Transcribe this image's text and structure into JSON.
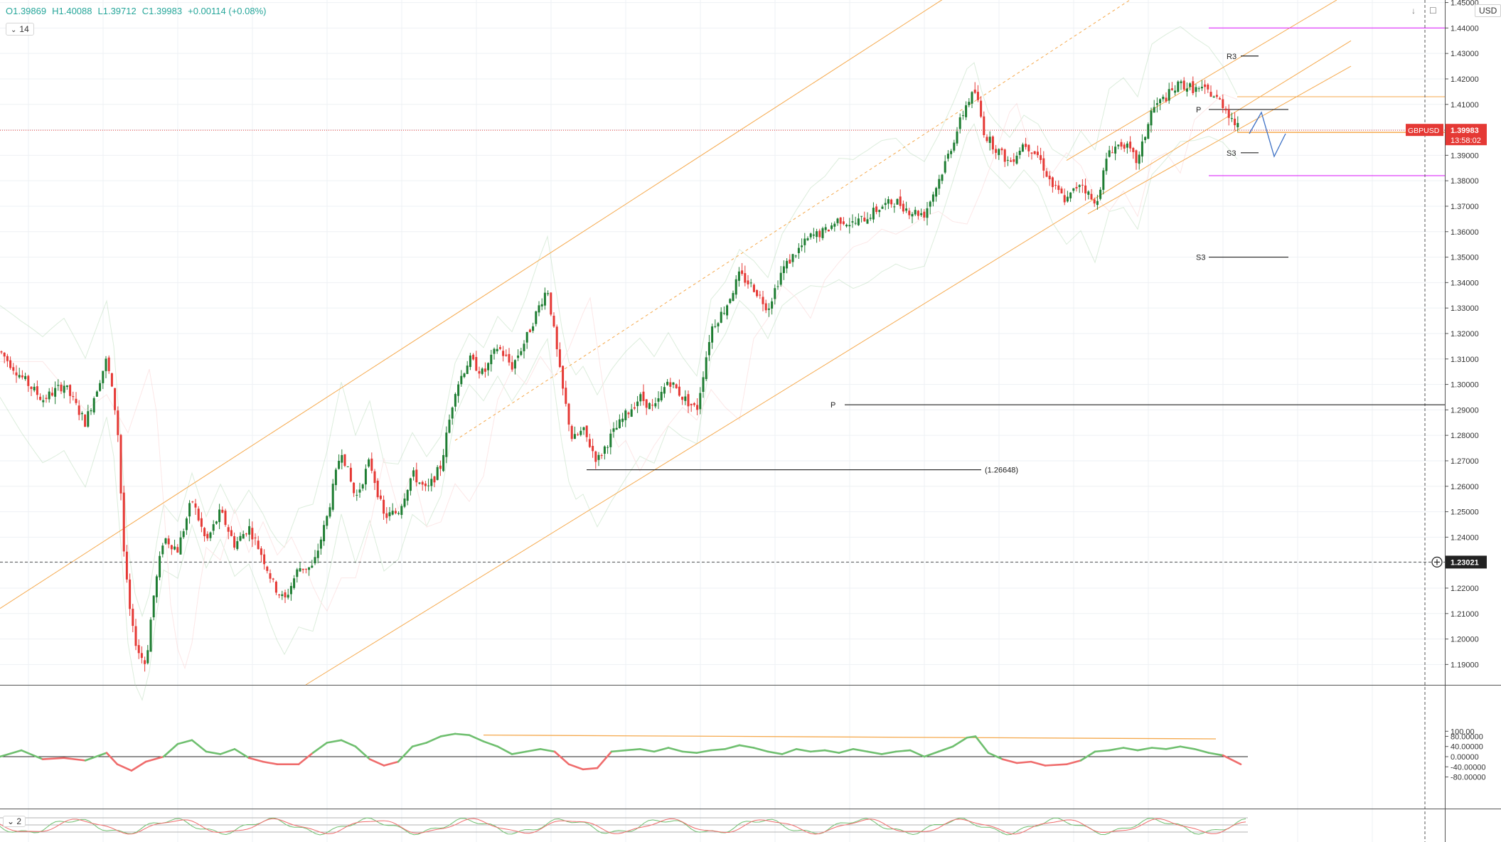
{
  "legend": {
    "open": "O1.39869",
    "high": "H1.40088",
    "low": "L1.39712",
    "close": "C1.39983",
    "change": "+0.00114 (+0.08%)"
  },
  "interval_badge": "14",
  "currency": "USD",
  "symbol_label": "GBPUSD",
  "price_label": "1.39983",
  "countdown": "13:58:02",
  "crosshair_label": "1.23021",
  "sub_indicator_badge": "2",
  "colors": {
    "up": "#1e7d32",
    "down": "#e53935",
    "channel": "#f5a94d",
    "magenta": "#e040fb",
    "cci_up": "#6fbf6f",
    "cci_down": "#ef6c6c",
    "arrow": "#3b6fc4"
  },
  "chart_data": {
    "type": "candlestick",
    "instrument": "GBPUSD",
    "y_axis": {
      "min": 1.182,
      "max": 1.451,
      "ticks": [
        "1.45000",
        "1.44000",
        "1.43000",
        "1.42000",
        "1.41000",
        "1.40000",
        "1.39000",
        "1.38000",
        "1.37000",
        "1.36000",
        "1.35000",
        "1.34000",
        "1.33000",
        "1.32000",
        "1.31000",
        "1.30000",
        "1.29000",
        "1.28000",
        "1.27000",
        "1.26000",
        "1.25000",
        "1.24000",
        "1.23000",
        "1.22000",
        "1.21000",
        "1.20000",
        "1.19000"
      ]
    },
    "price_path": [
      [
        0,
        1.313
      ],
      [
        30,
        1.303
      ],
      [
        60,
        1.294
      ],
      [
        90,
        1.3
      ],
      [
        120,
        1.285
      ],
      [
        150,
        1.31
      ],
      [
        165,
        1.285
      ],
      [
        175,
        1.23
      ],
      [
        185,
        1.205
      ],
      [
        195,
        1.195
      ],
      [
        205,
        1.19
      ],
      [
        215,
        1.215
      ],
      [
        230,
        1.24
      ],
      [
        250,
        1.235
      ],
      [
        270,
        1.255
      ],
      [
        290,
        1.238
      ],
      [
        310,
        1.25
      ],
      [
        330,
        1.237
      ],
      [
        350,
        1.244
      ],
      [
        370,
        1.232
      ],
      [
        385,
        1.221
      ],
      [
        400,
        1.215
      ],
      [
        420,
        1.228
      ],
      [
        440,
        1.228
      ],
      [
        460,
        1.248
      ],
      [
        480,
        1.275
      ],
      [
        500,
        1.255
      ],
      [
        520,
        1.27
      ],
      [
        540,
        1.248
      ],
      [
        560,
        1.25
      ],
      [
        580,
        1.265
      ],
      [
        600,
        1.258
      ],
      [
        620,
        1.268
      ],
      [
        640,
        1.298
      ],
      [
        660,
        1.31
      ],
      [
        680,
        1.304
      ],
      [
        700,
        1.315
      ],
      [
        720,
        1.307
      ],
      [
        740,
        1.318
      ],
      [
        760,
        1.332
      ],
      [
        770,
        1.338
      ],
      [
        790,
        1.3
      ],
      [
        805,
        1.278
      ],
      [
        820,
        1.282
      ],
      [
        840,
        1.27
      ],
      [
        860,
        1.28
      ],
      [
        880,
        1.288
      ],
      [
        900,
        1.295
      ],
      [
        920,
        1.29
      ],
      [
        940,
        1.302
      ],
      [
        960,
        1.295
      ],
      [
        980,
        1.29
      ],
      [
        1000,
        1.322
      ],
      [
        1020,
        1.33
      ],
      [
        1040,
        1.343
      ],
      [
        1060,
        1.338
      ],
      [
        1080,
        1.33
      ],
      [
        1100,
        1.345
      ],
      [
        1120,
        1.352
      ],
      [
        1140,
        1.358
      ],
      [
        1160,
        1.36
      ],
      [
        1180,
        1.365
      ],
      [
        1200,
        1.363
      ],
      [
        1220,
        1.366
      ],
      [
        1240,
        1.37
      ],
      [
        1260,
        1.372
      ],
      [
        1280,
        1.368
      ],
      [
        1300,
        1.367
      ],
      [
        1320,
        1.38
      ],
      [
        1340,
        1.395
      ],
      [
        1360,
        1.411
      ],
      [
        1372,
        1.415
      ],
      [
        1385,
        1.398
      ],
      [
        1400,
        1.393
      ],
      [
        1420,
        1.387
      ],
      [
        1440,
        1.395
      ],
      [
        1460,
        1.39
      ],
      [
        1480,
        1.378
      ],
      [
        1500,
        1.372
      ],
      [
        1520,
        1.38
      ],
      [
        1540,
        1.37
      ],
      [
        1560,
        1.392
      ],
      [
        1580,
        1.395
      ],
      [
        1600,
        1.387
      ],
      [
        1620,
        1.408
      ],
      [
        1640,
        1.413
      ],
      [
        1660,
        1.418
      ],
      [
        1680,
        1.416
      ],
      [
        1700,
        1.415
      ],
      [
        1720,
        1.41
      ],
      [
        1745,
        1.399
      ]
    ],
    "annotations": [
      {
        "label": "R3",
        "value": 1.429
      },
      {
        "label": "P",
        "value": 1.408
      },
      {
        "label": "S3",
        "value": 1.391
      },
      {
        "label": "S3",
        "value": 1.35
      },
      {
        "label": "P",
        "value": 1.292
      },
      {
        "label": "(1.26648)",
        "value": 1.26648
      }
    ],
    "horizontal_levels": {
      "magenta_upper": 1.44,
      "magenta_lower": 1.382,
      "orange_1": 1.413,
      "orange_2": 1.399,
      "last_price": 1.39983,
      "crosshair": 1.23021
    },
    "cci_panel": {
      "min": -100,
      "max": 100,
      "ticks": [
        "100.00",
        "80.00000",
        "40.00000",
        "0.00000",
        "-40.00000",
        "-80.00000"
      ],
      "path": [
        [
          0,
          0
        ],
        [
          30,
          25
        ],
        [
          60,
          -10
        ],
        [
          90,
          -5
        ],
        [
          120,
          -15
        ],
        [
          150,
          15
        ],
        [
          165,
          -30
        ],
        [
          185,
          -55
        ],
        [
          205,
          -20
        ],
        [
          230,
          0
        ],
        [
          250,
          50
        ],
        [
          270,
          65
        ],
        [
          290,
          20
        ],
        [
          310,
          10
        ],
        [
          330,
          30
        ],
        [
          350,
          -5
        ],
        [
          370,
          -20
        ],
        [
          390,
          -30
        ],
        [
          420,
          -30
        ],
        [
          440,
          15
        ],
        [
          460,
          55
        ],
        [
          480,
          65
        ],
        [
          500,
          40
        ],
        [
          520,
          -10
        ],
        [
          540,
          -35
        ],
        [
          560,
          -20
        ],
        [
          580,
          40
        ],
        [
          600,
          55
        ],
        [
          620,
          80
        ],
        [
          640,
          90
        ],
        [
          660,
          85
        ],
        [
          680,
          60
        ],
        [
          700,
          40
        ],
        [
          720,
          10
        ],
        [
          740,
          20
        ],
        [
          760,
          30
        ],
        [
          780,
          20
        ],
        [
          800,
          -30
        ],
        [
          820,
          -50
        ],
        [
          840,
          -45
        ],
        [
          860,
          20
        ],
        [
          880,
          25
        ],
        [
          900,
          30
        ],
        [
          920,
          20
        ],
        [
          940,
          35
        ],
        [
          960,
          20
        ],
        [
          980,
          15
        ],
        [
          1000,
          25
        ],
        [
          1020,
          30
        ],
        [
          1040,
          45
        ],
        [
          1060,
          35
        ],
        [
          1080,
          20
        ],
        [
          1100,
          10
        ],
        [
          1120,
          30
        ],
        [
          1140,
          20
        ],
        [
          1160,
          25
        ],
        [
          1180,
          15
        ],
        [
          1200,
          30
        ],
        [
          1220,
          20
        ],
        [
          1240,
          10
        ],
        [
          1260,
          20
        ],
        [
          1280,
          25
        ],
        [
          1300,
          0
        ],
        [
          1320,
          20
        ],
        [
          1340,
          40
        ],
        [
          1360,
          75
        ],
        [
          1372,
          80
        ],
        [
          1390,
          15
        ],
        [
          1410,
          -10
        ],
        [
          1430,
          -25
        ],
        [
          1450,
          -20
        ],
        [
          1470,
          -35
        ],
        [
          1500,
          -30
        ],
        [
          1520,
          -15
        ],
        [
          1540,
          20
        ],
        [
          1560,
          25
        ],
        [
          1580,
          35
        ],
        [
          1600,
          25
        ],
        [
          1620,
          35
        ],
        [
          1640,
          30
        ],
        [
          1660,
          40
        ],
        [
          1680,
          30
        ],
        [
          1700,
          15
        ],
        [
          1720,
          5
        ],
        [
          1745,
          -30
        ]
      ]
    }
  }
}
